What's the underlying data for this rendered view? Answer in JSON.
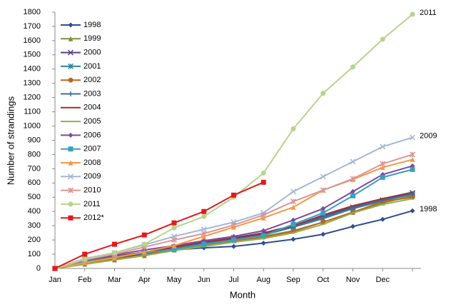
{
  "chart_data": {
    "type": "line",
    "x_label": "Month",
    "y_label": "Number of strandings",
    "categories": [
      "Jan",
      "Feb",
      "Mar",
      "Apr",
      "May",
      "Jun",
      "Jul",
      "Aug",
      "Sep",
      "Oct",
      "Nov",
      "Dec",
      null
    ],
    "ylim": [
      0,
      1800
    ],
    "yticks": [
      0,
      100,
      200,
      300,
      400,
      500,
      600,
      700,
      800,
      900,
      1000,
      1100,
      1200,
      1300,
      1400,
      1500,
      1600,
      1700,
      1800
    ],
    "grid": false,
    "legend": "upper left",
    "series": [
      {
        "name": "1998",
        "color": "#2e4e8f",
        "marker": "diamond",
        "values": [
          0,
          40,
          75,
          100,
          130,
          145,
          155,
          178,
          205,
          240,
          295,
          345,
          405
        ]
      },
      {
        "name": "1999",
        "color": "#77933c",
        "marker": "triangle",
        "values": [
          0,
          30,
          60,
          90,
          130,
          165,
          195,
          225,
          265,
          325,
          395,
          460,
          510
        ]
      },
      {
        "name": "2000",
        "color": "#5f3f7f",
        "marker": "x",
        "values": [
          0,
          50,
          85,
          115,
          150,
          185,
          215,
          250,
          300,
          370,
          430,
          480,
          530
        ]
      },
      {
        "name": "2001",
        "color": "#31849b",
        "marker": "asterisk",
        "values": [
          0,
          45,
          80,
          110,
          140,
          170,
          200,
          235,
          290,
          350,
          420,
          475,
          520
        ]
      },
      {
        "name": "2002",
        "color": "#c0651e",
        "marker": "circle",
        "values": [
          0,
          35,
          65,
          95,
          140,
          170,
          195,
          220,
          260,
          325,
          395,
          470,
          500
        ]
      },
      {
        "name": "2003",
        "color": "#3a6ea5",
        "marker": "plus",
        "values": [
          0,
          45,
          80,
          110,
          145,
          180,
          205,
          240,
          290,
          360,
          425,
          480,
          525
        ]
      },
      {
        "name": "2004",
        "color": "#a0312e",
        "marker": "none",
        "values": [
          0,
          50,
          85,
          115,
          150,
          185,
          210,
          245,
          300,
          375,
          440,
          490,
          535
        ]
      },
      {
        "name": "2005",
        "color": "#92b04a",
        "marker": "none",
        "values": [
          0,
          30,
          60,
          90,
          125,
          155,
          185,
          210,
          250,
          310,
          390,
          450,
          490
        ]
      },
      {
        "name": "2006",
        "color": "#7f4a9a",
        "marker": "diamond",
        "values": [
          0,
          55,
          95,
          130,
          160,
          195,
          225,
          265,
          340,
          420,
          540,
          660,
          720
        ]
      },
      {
        "name": "2007",
        "color": "#3aa0c0",
        "marker": "square",
        "values": [
          0,
          45,
          80,
          110,
          135,
          170,
          200,
          230,
          310,
          390,
          510,
          640,
          695
        ]
      },
      {
        "name": "2008",
        "color": "#f79646",
        "marker": "triangle",
        "values": [
          0,
          40,
          75,
          115,
          160,
          225,
          290,
          355,
          430,
          550,
          625,
          710,
          765
        ]
      },
      {
        "name": "2009",
        "color": "#a4b6d8",
        "marker": "x",
        "values": [
          0,
          70,
          110,
          165,
          225,
          275,
          325,
          390,
          540,
          645,
          750,
          855,
          920
        ]
      },
      {
        "name": "2010",
        "color": "#d99694",
        "marker": "asterisk",
        "values": [
          0,
          60,
          100,
          150,
          200,
          245,
          305,
          375,
          470,
          550,
          630,
          735,
          800
        ]
      },
      {
        "name": "2011",
        "color": "#b7d48c",
        "marker": "circle",
        "values": [
          0,
          65,
          110,
          170,
          285,
          365,
          500,
          670,
          980,
          1230,
          1415,
          1610,
          1785
        ]
      },
      {
        "name": "2012*",
        "color": "#e31a1c",
        "marker": "square",
        "values": [
          0,
          100,
          170,
          235,
          320,
          400,
          515,
          605,
          null,
          null,
          null,
          null,
          null
        ]
      }
    ],
    "annotations": [
      "2011",
      "2009",
      "1998"
    ]
  }
}
